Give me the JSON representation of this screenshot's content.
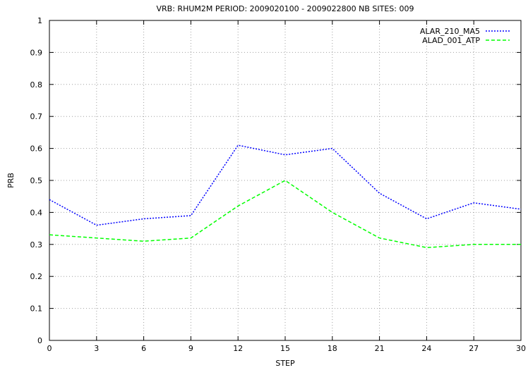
{
  "chart_data": {
    "type": "line",
    "title": "VRB: RHUM2M PERIOD: 2009020100 - 2009022800 NB SITES: 009",
    "xlabel": "STEP",
    "ylabel": "PRB",
    "x": [
      0,
      3,
      6,
      9,
      12,
      15,
      18,
      21,
      24,
      27,
      30
    ],
    "xlim": [
      0,
      30
    ],
    "ylim": [
      0,
      1
    ],
    "xticks": [
      "0",
      "3",
      "6",
      "9",
      "12",
      "15",
      "18",
      "21",
      "24",
      "27",
      "30"
    ],
    "yticks": [
      "0",
      "0.1",
      "0.2",
      "0.3",
      "0.4",
      "0.5",
      "0.6",
      "0.7",
      "0.8",
      "0.9",
      "1"
    ],
    "grid": true,
    "legend_position": "top-right",
    "series": [
      {
        "name": "ALAR_210_MA5",
        "color": "#0000ff",
        "style": "dotted",
        "values": [
          0.44,
          0.36,
          0.38,
          0.39,
          0.61,
          0.58,
          0.6,
          0.46,
          0.38,
          0.43,
          0.41
        ]
      },
      {
        "name": "ALAD_001_ATP",
        "color": "#00ff00",
        "style": "dashed",
        "values": [
          0.33,
          0.32,
          0.31,
          0.32,
          0.42,
          0.5,
          0.4,
          0.32,
          0.29,
          0.3,
          0.3
        ]
      }
    ]
  }
}
